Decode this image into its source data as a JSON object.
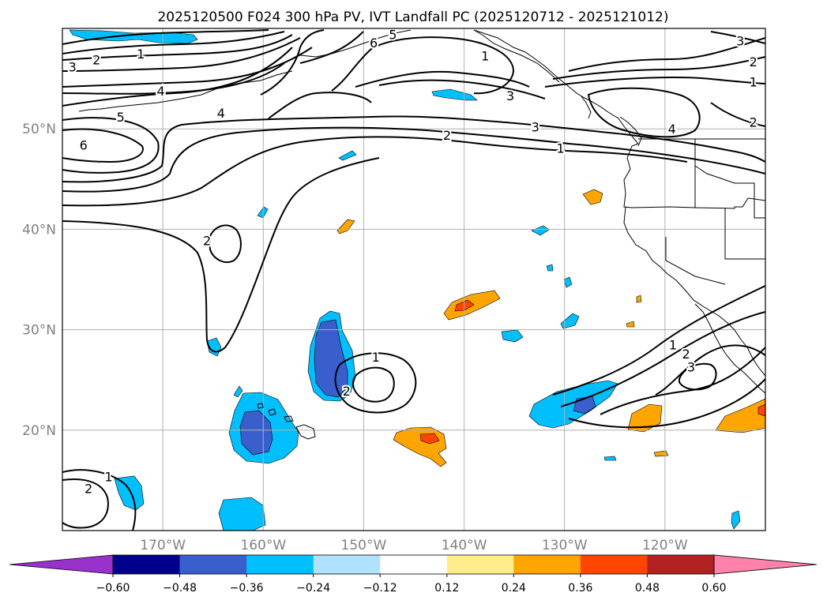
{
  "title": "2025120500 F024 300 hPa PV, IVT Landfall PC (2025120712 - 2025121012)",
  "map": {
    "lon_range": [
      -180,
      -110
    ],
    "lat_range": [
      10,
      60
    ],
    "lat_labels": [
      {
        "lat": 50,
        "text": "50°N"
      },
      {
        "lat": 40,
        "text": "40°N"
      },
      {
        "lat": 30,
        "text": "30°N"
      },
      {
        "lat": 20,
        "text": "20°N"
      }
    ],
    "lon_labels": [
      {
        "lon": -170,
        "text": "170°W"
      },
      {
        "lon": -160,
        "text": "160°W"
      },
      {
        "lon": -150,
        "text": "150°W"
      },
      {
        "lon": -140,
        "text": "140°W"
      },
      {
        "lon": -130,
        "text": "130°W"
      },
      {
        "lon": -120,
        "text": "120°W"
      }
    ],
    "gridlines": true
  },
  "colorbar": {
    "extend": "both",
    "colors": [
      "#9932CC",
      "#00008B",
      "#3A5FCD",
      "#00BFFF",
      "#B0E2FF",
      "#FFFFFF",
      "#FFEC8B",
      "#FFA500",
      "#FF4500",
      "#B22222",
      "#FF82AB"
    ],
    "ticks": [
      "−0.60",
      "−0.48",
      "−0.36",
      "−0.24",
      "−0.12",
      "0.12",
      "0.24",
      "0.36",
      "0.48",
      "0.60"
    ]
  },
  "contour_labels": [
    {
      "text": "3",
      "lon": -179,
      "lat": 56.2
    },
    {
      "text": "2",
      "lon": -176.6,
      "lat": 56.9
    },
    {
      "text": "1",
      "lon": -172.2,
      "lat": 57.5
    },
    {
      "text": "4",
      "lon": -170.2,
      "lat": 53.8
    },
    {
      "text": "5",
      "lon": -174.2,
      "lat": 51.2
    },
    {
      "text": "6",
      "lon": -177.9,
      "lat": 48.4
    },
    {
      "text": "4",
      "lon": -164.2,
      "lat": 51.6
    },
    {
      "text": "6",
      "lon": -149,
      "lat": 58.6
    },
    {
      "text": "5",
      "lon": -147.1,
      "lat": 59.4
    },
    {
      "text": "1",
      "lon": -137.9,
      "lat": 57.3
    },
    {
      "text": "3",
      "lon": -135.4,
      "lat": 53.3
    },
    {
      "text": "3",
      "lon": -132.9,
      "lat": 50.2
    },
    {
      "text": "2",
      "lon": -141.7,
      "lat": 49.4
    },
    {
      "text": "1",
      "lon": -130.4,
      "lat": 48.1
    },
    {
      "text": "4",
      "lon": -119.3,
      "lat": 50.0
    },
    {
      "text": "3",
      "lon": -112.5,
      "lat": 58.8
    },
    {
      "text": "2",
      "lon": -111.2,
      "lat": 56.7
    },
    {
      "text": "1",
      "lon": -111.2,
      "lat": 54.7
    },
    {
      "text": "2",
      "lon": -111.2,
      "lat": 50.7
    },
    {
      "text": "2",
      "lon": -165.6,
      "lat": 38.9
    },
    {
      "text": "1",
      "lon": -148.8,
      "lat": 27.3
    },
    {
      "text": "2",
      "lon": -151.7,
      "lat": 23.9
    },
    {
      "text": "1",
      "lon": -119.2,
      "lat": 28.5
    },
    {
      "text": "2",
      "lon": -117.9,
      "lat": 27.6
    },
    {
      "text": "3",
      "lon": -117.4,
      "lat": 26.3
    },
    {
      "text": "1",
      "lon": -175.4,
      "lat": 15.4
    },
    {
      "text": "2",
      "lon": -177.4,
      "lat": 14.2
    }
  ]
}
